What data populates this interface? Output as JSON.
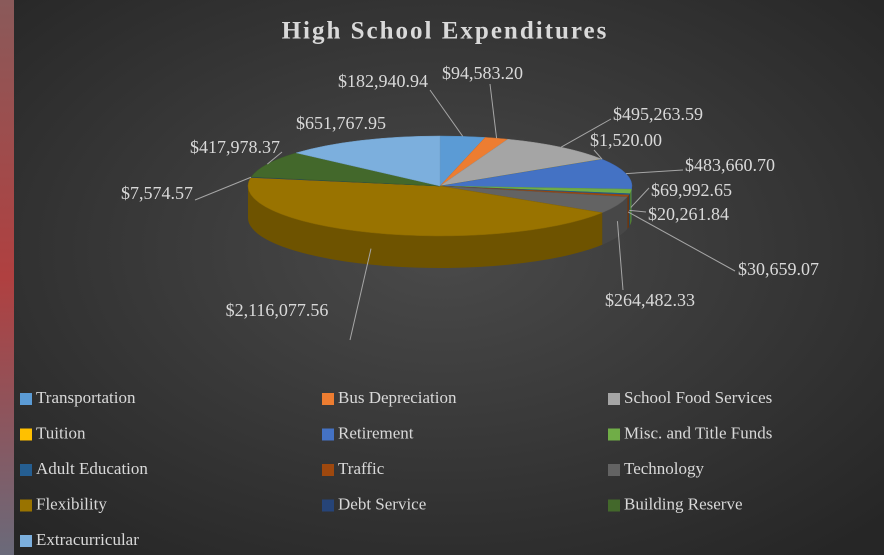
{
  "chart_data": {
    "type": "pie",
    "title": "High School Expenditures",
    "categories": [
      "Transportation",
      "Bus Depreciation",
      "School Food Services",
      "Tuition",
      "Retirement",
      "Misc. and Title Funds",
      "Adult Education",
      "Traffic",
      "Technology",
      "Flexibility",
      "Debt Service",
      "Building Reserve",
      "Extracurricular"
    ],
    "values": [
      182940.94,
      94583.2,
      495263.59,
      1520.0,
      483660.7,
      69992.65,
      20261.84,
      30659.07,
      264482.33,
      2116077.56,
      7574.57,
      417978.37,
      651767.95
    ],
    "value_labels": [
      "$182,940.94",
      "$94,583.20",
      "$495,263.59",
      "$1,520.00",
      "$483,660.70",
      "$69,992.65",
      "$20,261.84",
      "$30,659.07",
      "$264,482.33",
      "$2,116,077.56",
      "$7,574.57",
      "$417,978.37",
      "$651,767.95"
    ],
    "colors": [
      "#5b9bd5",
      "#ed7d31",
      "#a5a5a5",
      "#ffc000",
      "#4472c4",
      "#70ad47",
      "#255e91",
      "#9e480e",
      "#636363",
      "#997300",
      "#264478",
      "#43682b",
      "#7cafdd"
    ]
  }
}
